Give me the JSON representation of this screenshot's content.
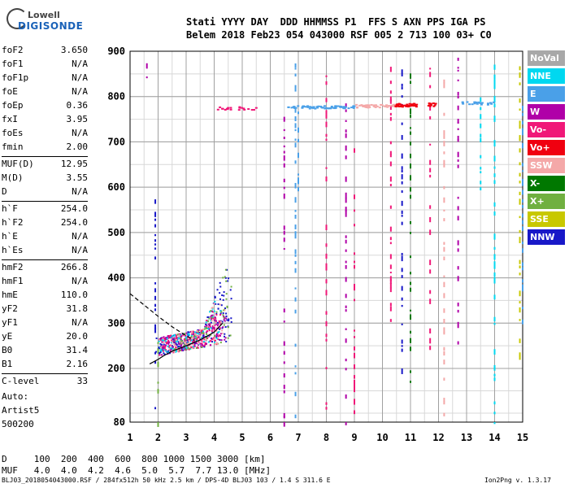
{
  "logo": {
    "line1": "Lowell",
    "line2": "DIGISONDE"
  },
  "header": {
    "line1": "Stati YYYY DAY  DDD HHMMSS P1  FFS S AXN PPS IGA PS",
    "line2": "Belem 2018 Feb23 054 043000 RSF 005 2 713 100 03+ C0"
  },
  "params": [
    [
      {
        "k": "foF2",
        "v": "3.650"
      },
      {
        "k": "foF1",
        "v": "N/A"
      },
      {
        "k": "foF1p",
        "v": "N/A"
      },
      {
        "k": "foE",
        "v": "N/A"
      },
      {
        "k": "foEp",
        "v": "0.36"
      },
      {
        "k": "fxI",
        "v": "3.95"
      },
      {
        "k": "foEs",
        "v": "N/A"
      },
      {
        "k": "fmin",
        "v": "2.00"
      }
    ],
    [
      {
        "k": "MUF(D)",
        "v": "12.95"
      },
      {
        "k": "M(D)",
        "v": "3.55"
      },
      {
        "k": "D",
        "v": "N/A"
      }
    ],
    [
      {
        "k": "h`F",
        "v": "254.0"
      },
      {
        "k": "h`F2",
        "v": "254.0"
      },
      {
        "k": "h`E",
        "v": "N/A"
      },
      {
        "k": "h`Es",
        "v": "N/A"
      }
    ],
    [
      {
        "k": "hmF2",
        "v": "266.8"
      },
      {
        "k": "hmF1",
        "v": "N/A"
      },
      {
        "k": "hmE",
        "v": "110.0"
      },
      {
        "k": "yF2",
        "v": "31.8"
      },
      {
        "k": "yF1",
        "v": "N/A"
      },
      {
        "k": "yE",
        "v": "20.0"
      },
      {
        "k": "B0",
        "v": "31.4"
      },
      {
        "k": "B1",
        "v": "2.16"
      }
    ],
    [
      {
        "k": "C-level",
        "v": "33"
      }
    ]
  ],
  "auto": {
    "line1": "Auto:",
    "line2": "Artist5",
    "line3": "500200"
  },
  "legend": [
    {
      "label": "NoVal",
      "color": "#a8a8a8"
    },
    {
      "label": "NNE",
      "color": "#00d8f0"
    },
    {
      "label": "E",
      "color": "#4aa0e8"
    },
    {
      "label": "W",
      "color": "#b000a8"
    },
    {
      "label": "Vo-",
      "color": "#f01878"
    },
    {
      "label": "Vo+",
      "color": "#f00010"
    },
    {
      "label": "SSW",
      "color": "#f4a8a8"
    },
    {
      "label": "X-",
      "color": "#007800"
    },
    {
      "label": "X+",
      "color": "#70b040"
    },
    {
      "label": "SSE",
      "color": "#c8c800"
    },
    {
      "label": "NNW",
      "color": "#1818c8"
    }
  ],
  "footer": {
    "d_row": "D     100  200  400  600  800 1000 1500 3000 [km]",
    "muf_row": "MUF   4.0  4.0  4.2  4.6  5.0  5.7  7.7 13.0 [MHz]",
    "file_info": "BLJ03_2018054043000.RSF / 284fx512h 50 kHz 2.5 km / DPS-4D BLJ03 103 / 1.4 S 311.6 E",
    "version": "Ion2Png v. 1.3.17"
  },
  "chart_data": {
    "type": "scatter",
    "xlim": [
      1,
      15
    ],
    "ylim": [
      80,
      900
    ],
    "x_ticks": [
      "1",
      "2",
      "3",
      "4",
      "5",
      "6",
      "7",
      "8",
      "9",
      "10",
      "11",
      "12",
      "13",
      "14",
      "15"
    ],
    "y_ticks": [
      "80",
      "200",
      "300",
      "400",
      "500",
      "600",
      "700",
      "800",
      "900"
    ],
    "grid": true,
    "traces": [
      {
        "name": "",
        "x": [
          1.7,
          2.0,
          2.2,
          2.5,
          3.0,
          3.5,
          4.0,
          4.3
        ],
        "y": [
          210,
          220,
          228,
          238,
          250,
          263,
          280,
          300
        ]
      },
      {
        "name": "",
        "x": [
          1.0,
          1.5,
          2.0,
          2.5,
          3.0,
          3.3
        ],
        "y": [
          365,
          340,
          315,
          292,
          272,
          262
        ]
      }
    ],
    "clusters": [
      {
        "color": "NNW",
        "x": [
          1.9,
          4.6
        ],
        "y": [
          240,
          420
        ],
        "n": 180
      },
      {
        "color": "Vo-",
        "x": [
          2.0,
          4.2
        ],
        "y": [
          240,
          330
        ],
        "n": 200
      },
      {
        "color": "W",
        "x": [
          2.0,
          4.4
        ],
        "y": [
          240,
          320
        ],
        "n": 120
      },
      {
        "color": "NNE",
        "x": [
          2.0,
          4.2
        ],
        "y": [
          250,
          360
        ],
        "n": 80
      },
      {
        "color": "X+",
        "x": [
          2.5,
          4.6
        ],
        "y": [
          260,
          420
        ],
        "n": 60
      },
      {
        "color": "SSW",
        "x": [
          2.0,
          4.4
        ],
        "y": [
          240,
          350
        ],
        "n": 60
      }
    ],
    "bands": [
      {
        "color": "E",
        "x": [
          6.6,
          9.0
        ],
        "y": [
          775,
          781
        ],
        "n": 70
      },
      {
        "color": "SSW",
        "x": [
          9.0,
          10.4
        ],
        "y": [
          777,
          784
        ],
        "n": 40
      },
      {
        "color": "Vo+",
        "x": [
          10.4,
          11.3
        ],
        "y": [
          779,
          786
        ],
        "n": 40
      },
      {
        "color": "Vo+",
        "x": [
          11.6,
          11.9
        ],
        "y": [
          780,
          787
        ],
        "n": 10
      },
      {
        "color": "E",
        "x": [
          12.8,
          14.0
        ],
        "y": [
          783,
          790
        ],
        "n": 20
      },
      {
        "color": "Vo-",
        "x": [
          4.0,
          5.5
        ],
        "y": [
          772,
          779
        ],
        "n": 20
      }
    ],
    "columns": [
      {
        "x": 1.6,
        "y": [
          820,
          880
        ],
        "color": "W"
      },
      {
        "x": 1.9,
        "y": [
          80,
          600
        ],
        "color": "NNW"
      },
      {
        "x": 2.0,
        "y": [
          80,
          300
        ],
        "color": "X+"
      },
      {
        "x": 6.5,
        "y": [
          80,
          760
        ],
        "color": "W"
      },
      {
        "x": 6.9,
        "y": [
          80,
          880
        ],
        "color": "E"
      },
      {
        "x": 7.0,
        "y": [
          600,
          800
        ],
        "color": "E"
      },
      {
        "x": 8.0,
        "y": [
          80,
          880
        ],
        "color": "Vo-"
      },
      {
        "x": 8.7,
        "y": [
          80,
          800
        ],
        "color": "W"
      },
      {
        "x": 9.0,
        "y": [
          80,
          750
        ],
        "color": "Vo-"
      },
      {
        "x": 10.3,
        "y": [
          300,
          880
        ],
        "color": "Vo-"
      },
      {
        "x": 10.7,
        "y": [
          200,
          880
        ],
        "color": "NNW"
      },
      {
        "x": 11.0,
        "y": [
          150,
          860
        ],
        "color": "X-"
      },
      {
        "x": 11.7,
        "y": [
          250,
          880
        ],
        "color": "Vo-"
      },
      {
        "x": 12.2,
        "y": [
          80,
          880
        ],
        "color": "SSW"
      },
      {
        "x": 12.7,
        "y": [
          260,
          890
        ],
        "color": "W"
      },
      {
        "x": 13.5,
        "y": [
          600,
          800
        ],
        "color": "NNE"
      },
      {
        "x": 14.0,
        "y": [
          80,
          880
        ],
        "color": "NNE"
      },
      {
        "x": 14.9,
        "y": [
          200,
          880
        ],
        "color": "SSE"
      },
      {
        "x": 15.0,
        "y": [
          300,
          800
        ],
        "color": "E"
      }
    ]
  }
}
